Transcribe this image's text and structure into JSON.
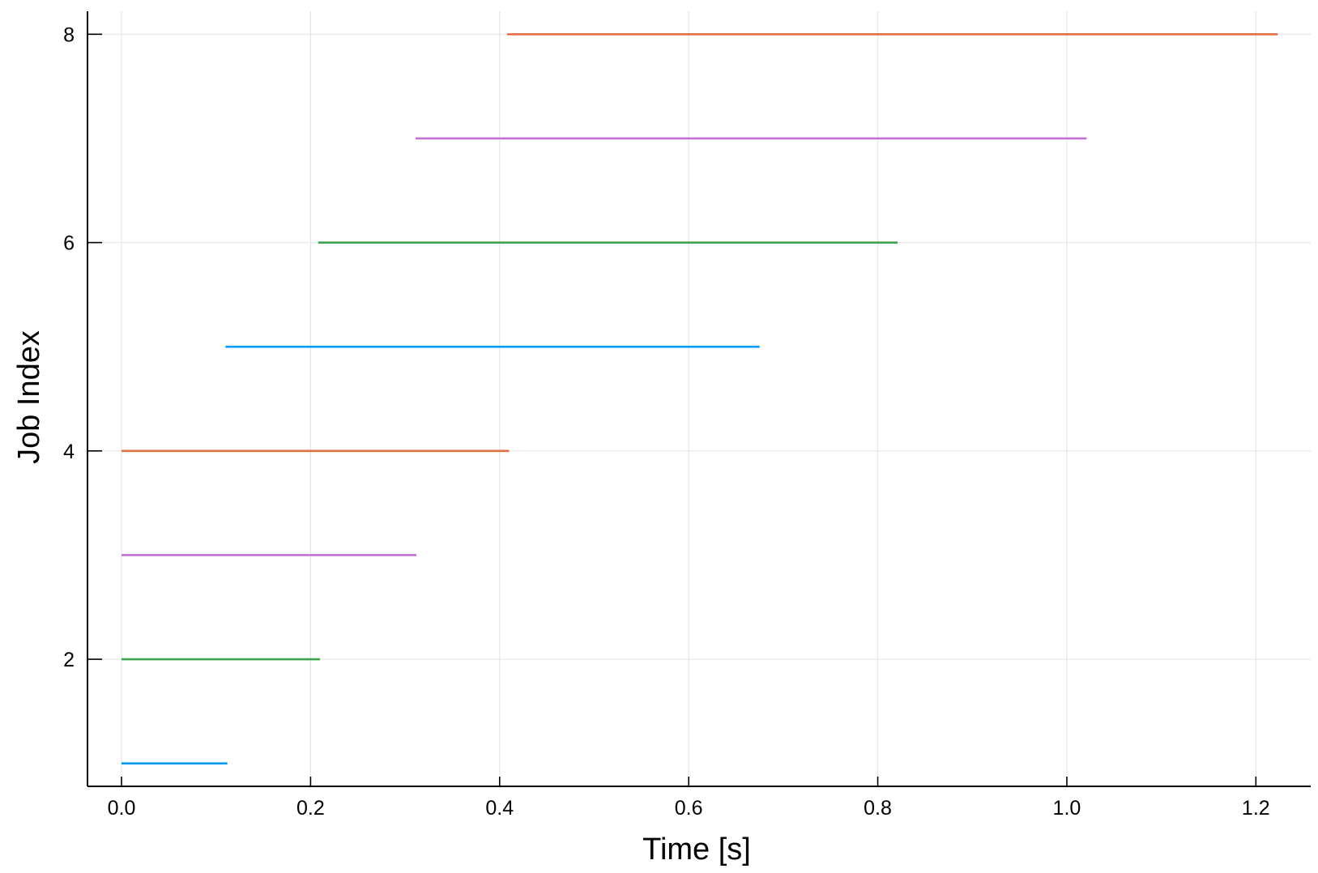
{
  "chart_data": {
    "type": "line",
    "title": "",
    "xlabel": "Time [s]",
    "ylabel": "Job Index",
    "xlim": [
      -0.036,
      1.258
    ],
    "ylim": [
      0.78,
      8.22
    ],
    "grid": true,
    "legend": "none",
    "x_ticks": [
      {
        "value": 0.0,
        "label": "0.0"
      },
      {
        "value": 0.2,
        "label": "0.2"
      },
      {
        "value": 0.4,
        "label": "0.4"
      },
      {
        "value": 0.6,
        "label": "0.6"
      },
      {
        "value": 0.8,
        "label": "0.8"
      },
      {
        "value": 1.0,
        "label": "1.0"
      },
      {
        "value": 1.2,
        "label": "1.2"
      }
    ],
    "y_ticks": [
      {
        "value": 2,
        "label": "2"
      },
      {
        "value": 4,
        "label": "4"
      },
      {
        "value": 6,
        "label": "6"
      },
      {
        "value": 8,
        "label": "8"
      }
    ],
    "series": [
      {
        "job": 1,
        "start": 0.0,
        "end": 0.112,
        "color": "#009af9"
      },
      {
        "job": 2,
        "start": 0.0,
        "end": 0.21,
        "color": "#3da44d"
      },
      {
        "job": 3,
        "start": 0.0,
        "end": 0.312,
        "color": "#c271d2"
      },
      {
        "job": 4,
        "start": 0.0,
        "end": 0.41,
        "color": "#e26f46"
      },
      {
        "job": 5,
        "start": 0.11,
        "end": 0.675,
        "color": "#009af9"
      },
      {
        "job": 6,
        "start": 0.208,
        "end": 0.821,
        "color": "#3da44d"
      },
      {
        "job": 7,
        "start": 0.311,
        "end": 1.021,
        "color": "#c271d2"
      },
      {
        "job": 8,
        "start": 0.408,
        "end": 1.223,
        "color": "#e26f46"
      }
    ]
  }
}
